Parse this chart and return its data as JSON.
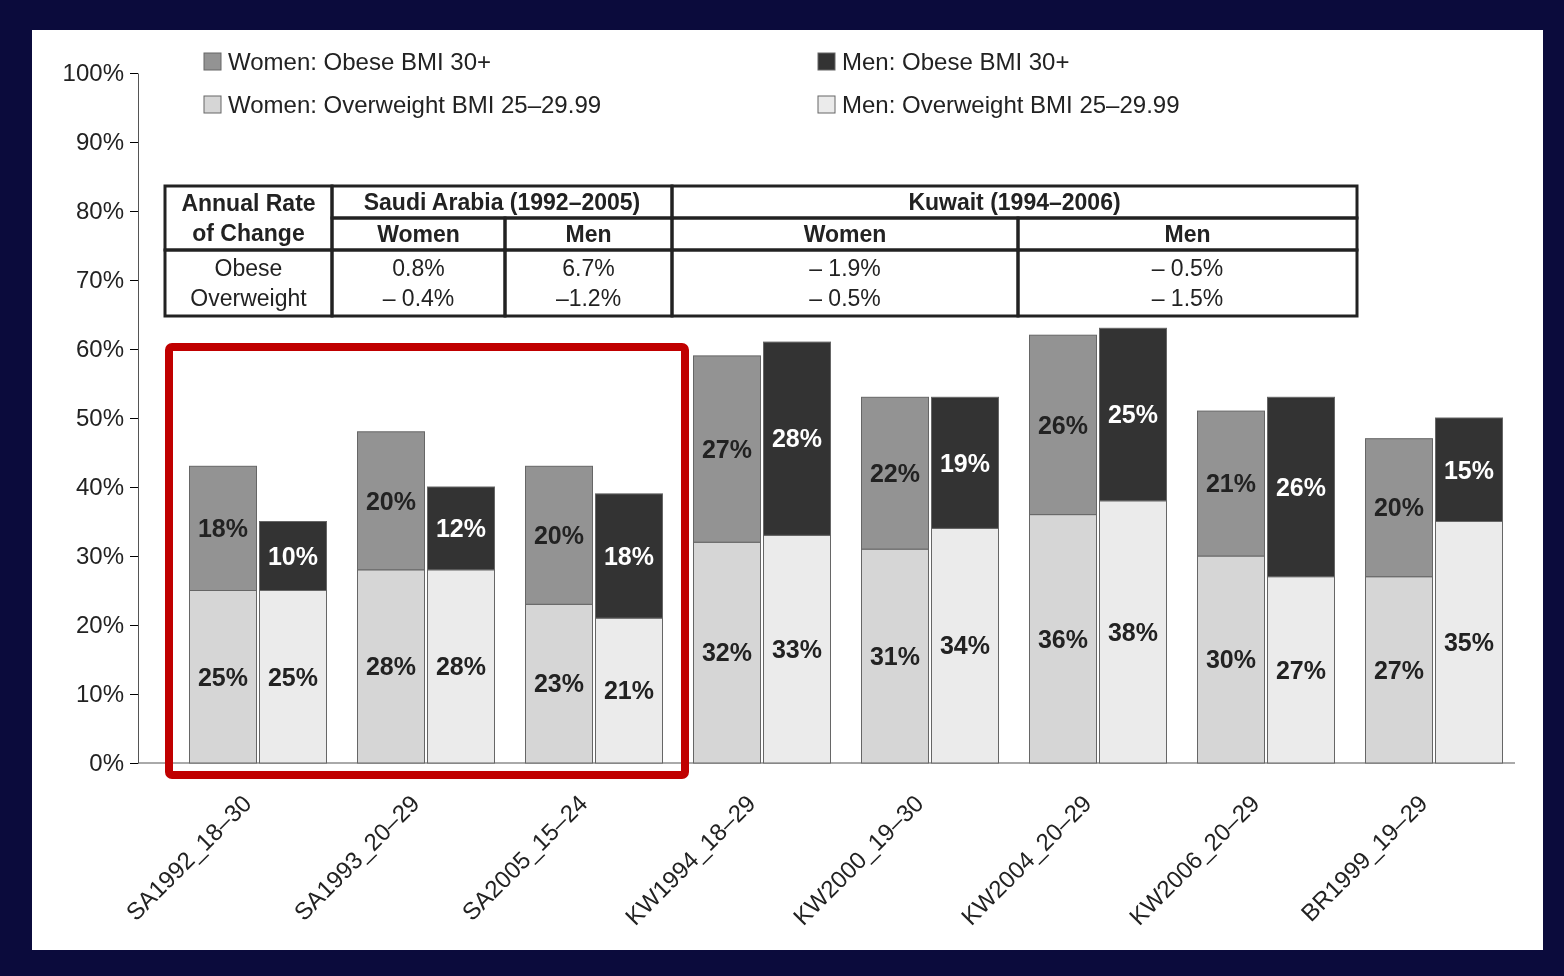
{
  "chart_data": {
    "type": "bar",
    "stacked": true,
    "categories": [
      "SA1992_18–30",
      null,
      "SA1993_20–29",
      null,
      "SA2005_15–24",
      null,
      "KW1994_18–29",
      null,
      "KW2000_19–30",
      null,
      "KW2004_20–29",
      null,
      "KW2006_20–29",
      null,
      "BR1999_19–29",
      null
    ],
    "series": [
      {
        "name": "Women: Overweight BMI 25–29.99",
        "color": "#d6d6d6",
        "values": [
          25,
          null,
          28,
          null,
          23,
          null,
          32,
          null,
          31,
          null,
          36,
          null,
          30,
          null,
          27,
          null
        ],
        "value_labels": [
          "25%",
          null,
          "28%",
          null,
          "23%",
          null,
          "32%",
          null,
          "31%",
          null,
          "36%",
          null,
          "30%",
          null,
          "27%",
          null
        ]
      },
      {
        "name": "Women: Obese BMI 30+",
        "color": "#939393",
        "values": [
          18,
          null,
          20,
          null,
          20,
          null,
          27,
          null,
          22,
          null,
          26,
          null,
          21,
          null,
          20,
          null
        ],
        "value_labels": [
          "18%",
          null,
          "20%",
          null,
          "20%",
          null,
          "27%",
          null,
          "22%",
          null,
          "26%",
          null,
          "21%",
          null,
          "20%",
          null
        ]
      },
      {
        "name": "Men: Overweight BMI 25–29.99",
        "color": "#ebebeb",
        "values": [
          null,
          25,
          null,
          28,
          null,
          21,
          null,
          33,
          null,
          34,
          null,
          38,
          null,
          27,
          null,
          35
        ],
        "value_labels": [
          null,
          "25%",
          null,
          "28%",
          null,
          "21%",
          null,
          "33%",
          null,
          "34%",
          null,
          "38%",
          null,
          "27%",
          null,
          "35%"
        ]
      },
      {
        "name": "Men: Obese BMI 30+",
        "color": "#333333",
        "values": [
          null,
          10,
          null,
          12,
          null,
          18,
          null,
          28,
          null,
          19,
          null,
          25,
          null,
          26,
          null,
          15
        ],
        "value_labels": [
          null,
          "10%",
          null,
          "12%",
          null,
          "18%",
          null,
          "28%",
          null,
          "19%",
          null,
          "25%",
          null,
          "26%",
          null,
          "15%"
        ]
      }
    ],
    "ylim": [
      0,
      100
    ],
    "yticks": [
      {
        "value": 0,
        "label": "0%"
      },
      {
        "value": 10,
        "label": "10%"
      },
      {
        "value": 20,
        "label": "20%"
      },
      {
        "value": 30,
        "label": "30%"
      },
      {
        "value": 40,
        "label": "40%"
      },
      {
        "value": 50,
        "label": "50%"
      },
      {
        "value": 60,
        "label": "60%"
      },
      {
        "value": 70,
        "label": "70%"
      },
      {
        "value": 80,
        "label": "80%"
      },
      {
        "value": 90,
        "label": "90%"
      },
      {
        "value": 100,
        "label": "100%"
      }
    ],
    "grid": false,
    "legend": "top",
    "annotations": [
      "Annual Rate\nof Change",
      "Saudi Arabia (1992–2005)",
      "Kuwait (1994–2006)",
      "Women",
      "Men",
      "Women",
      "Men",
      "Obese\nOverweight",
      "0.8%\n– 0.4%",
      "6.7%\n–1.2%",
      "– 1.9%\n– 0.5%",
      "– 0.5%\n– 1.5%"
    ]
  }
}
